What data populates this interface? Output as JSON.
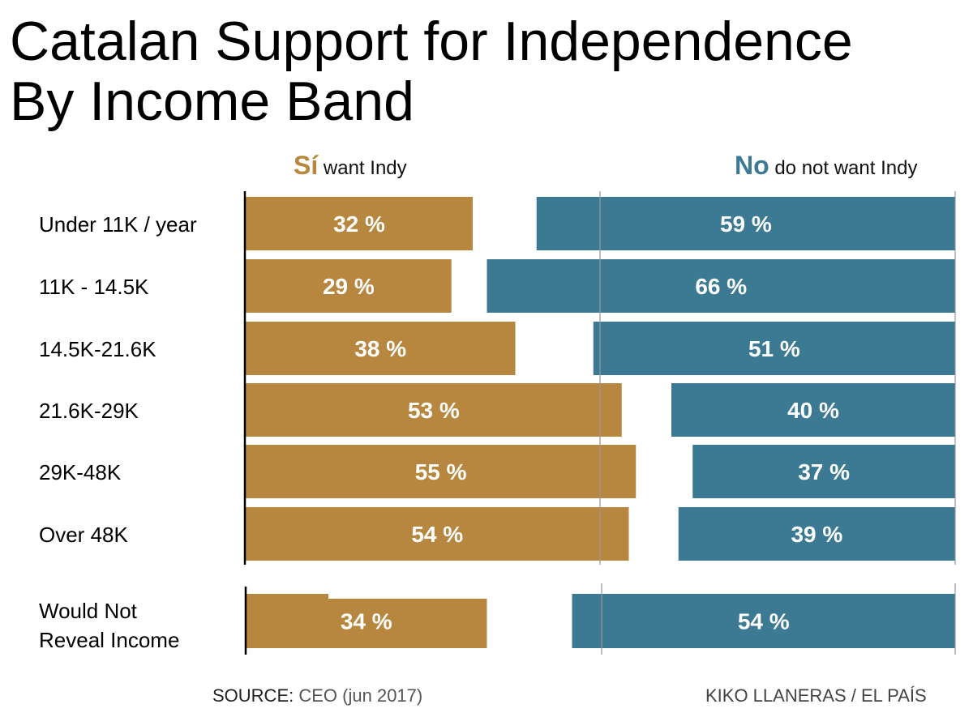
{
  "title_lines": [
    "Catalan Support for Independence",
    "By Income Band"
  ],
  "legend": {
    "yes_key": "Sí",
    "yes_text": "want Indy",
    "no_key": "No",
    "no_text": "do not want Indy"
  },
  "colors": {
    "yes": "#B8873F",
    "no": "#3C7A94"
  },
  "chart_data": {
    "type": "bar",
    "title": "Catalan Support for Independence By Income Band",
    "categories": [
      "Under 11K / year",
      "11K - 14.5K",
      "14.5K-21.6K",
      "21.6K-29K",
      "29K-48K",
      "Over 48K",
      "Would Not Reveal Income"
    ],
    "series": [
      {
        "name": "Sí want Indy",
        "values": [
          32,
          29,
          38,
          53,
          55,
          54,
          34
        ]
      },
      {
        "name": "No do not want Indy",
        "values": [
          59,
          66,
          51,
          40,
          37,
          39,
          54
        ]
      }
    ],
    "unit": "%"
  },
  "footer": {
    "source_label": "SOURCE:",
    "source": "CEO (jun 2017)",
    "credit": "KIKO LLANERAS / EL PAÍS"
  }
}
